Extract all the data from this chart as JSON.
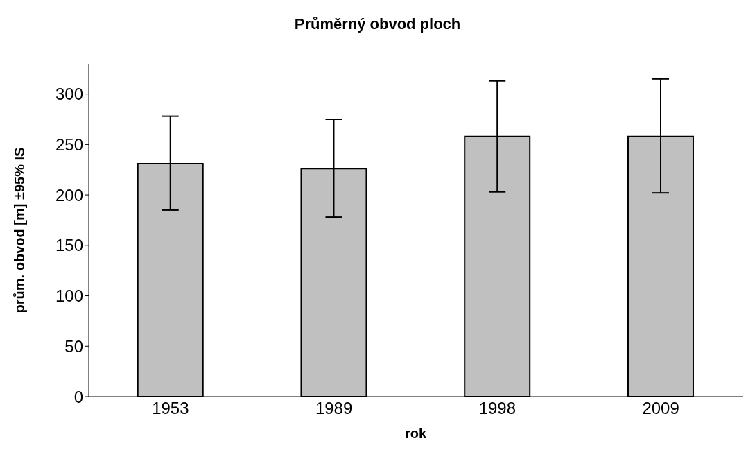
{
  "chart_data": {
    "type": "bar",
    "title": "Průměrný obvod ploch",
    "xlabel": "rok",
    "ylabel": "prům. obvod [m] ±95% IS",
    "categories": [
      "1953",
      "1989",
      "1998",
      "2009"
    ],
    "values": [
      231,
      226,
      258,
      258
    ],
    "color": "#c0c0c0",
    "errors": [
      [
        185,
        278
      ],
      [
        178,
        275
      ],
      [
        203,
        313
      ],
      [
        202,
        315
      ]
    ],
    "ylim": [
      0,
      330
    ],
    "yticks": [
      0,
      50,
      100,
      150,
      200,
      250,
      300
    ],
    "grid": false,
    "legend": false
  }
}
